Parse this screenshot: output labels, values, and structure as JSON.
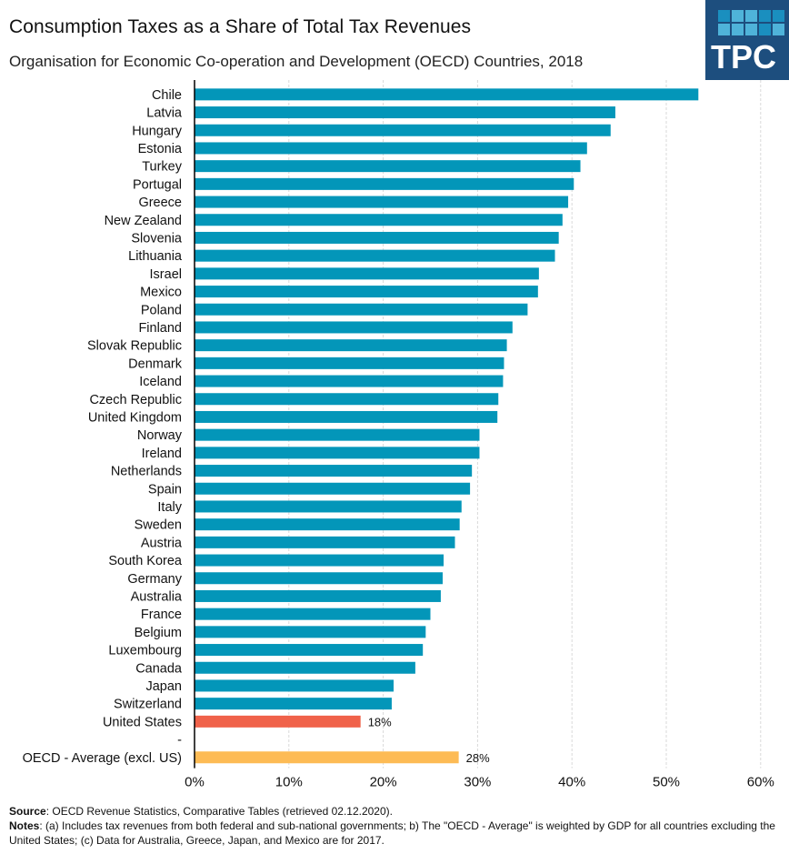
{
  "header": {
    "title": "Consumption Taxes as a Share of Total Tax Revenues",
    "subtitle": "Organisation for Economic Co-operation and Development (OECD) Countries, 2018",
    "logo_text": "TPC"
  },
  "colors": {
    "bar": "#0396b9",
    "us_bar": "#f0624a",
    "average_bar": "#fdbb55",
    "logo_bg": "#1d4e7e",
    "gridline": "#d9d9d9"
  },
  "chart_data": {
    "type": "bar",
    "orientation": "horizontal",
    "title": "Consumption Taxes as a Share of Total Tax Revenues",
    "subtitle": "Organisation for Economic Co-operation and Development (OECD) Countries, 2018",
    "xlabel": "",
    "ylabel": "",
    "xlim": [
      0,
      60
    ],
    "x_ticks": [
      "0%",
      "10%",
      "20%",
      "30%",
      "40%",
      "50%",
      "60%"
    ],
    "grid": "vertical-dashed",
    "unit": "%",
    "categories": [
      "Chile",
      "Latvia",
      "Hungary",
      "Estonia",
      "Turkey",
      "Portugal",
      "Greece",
      "New Zealand",
      "Slovenia",
      "Lithuania",
      "Israel",
      "Mexico",
      "Poland",
      "Finland",
      "Slovak Republic",
      "Denmark",
      "Iceland",
      "Czech Republic",
      "United Kingdom",
      "Norway",
      "Ireland",
      "Netherlands",
      "Spain",
      "Italy",
      "Sweden",
      "Austria",
      "South Korea",
      "Germany",
      "Australia",
      "France",
      "Belgium",
      "Luxembourg",
      "Canada",
      "Japan",
      "Switzerland",
      "United States",
      "-",
      "OECD - Average (excl. US)"
    ],
    "values": [
      53.4,
      44.6,
      44.1,
      41.6,
      40.9,
      40.2,
      39.6,
      39.0,
      38.6,
      38.2,
      36.5,
      36.4,
      35.3,
      33.7,
      33.1,
      32.8,
      32.7,
      32.2,
      32.1,
      30.2,
      30.2,
      29.4,
      29.2,
      28.3,
      28.1,
      27.6,
      26.4,
      26.3,
      26.1,
      25.0,
      24.5,
      24.2,
      23.4,
      21.1,
      20.9,
      17.6,
      null,
      28.0
    ],
    "highlight": {
      "United States": "us",
      "OECD - Average (excl. US)": "average"
    },
    "data_labels": {
      "United States": "18%",
      "OECD - Average (excl. US)": "28%"
    }
  },
  "footer": {
    "source_label": "Source",
    "source_text": ": OECD Revenue Statistics, Comparative Tables (retrieved 02.12.2020).",
    "notes_label": "Notes",
    "notes_text": ": (a) Includes tax revenues from both federal and sub-national governments; b) The \"OECD - Average\" is weighted by GDP for all countries excluding the United States; (c) Data for Australia, Greece, Japan, and Mexico are for 2017."
  }
}
